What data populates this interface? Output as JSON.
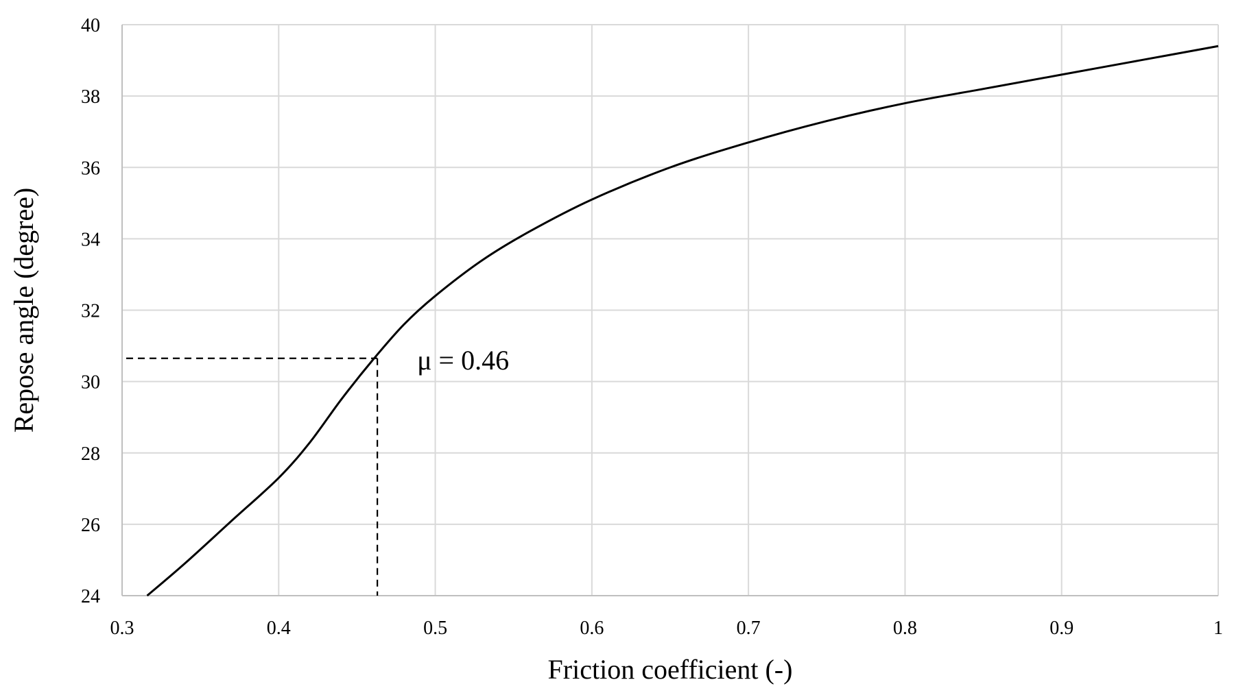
{
  "chart_data": {
    "type": "line",
    "xlabel": "Friction coefficient (-)",
    "ylabel": "Repose angle (degree)",
    "xlim": [
      0.3,
      1.0
    ],
    "ylim": [
      24,
      40
    ],
    "x_ticks": [
      0.3,
      0.4,
      0.5,
      0.6,
      0.7,
      0.8,
      0.9,
      1.0
    ],
    "x_tick_labels": [
      "0.3",
      "0.4",
      "0.5",
      "0.6",
      "0.7",
      "0.8",
      "0.9",
      "1"
    ],
    "y_ticks": [
      24,
      26,
      28,
      30,
      32,
      34,
      36,
      38,
      40
    ],
    "y_tick_labels": [
      "24",
      "26",
      "28",
      "30",
      "32",
      "34",
      "36",
      "38",
      "40"
    ],
    "grid": true,
    "legend": "none",
    "series": [
      {
        "color": "#000000",
        "x": [
          0.316,
          0.34,
          0.37,
          0.4,
          0.42,
          0.44,
          0.46,
          0.48,
          0.5,
          0.53,
          0.56,
          0.6,
          0.65,
          0.7,
          0.75,
          0.8,
          0.85,
          0.9,
          0.95,
          1.0
        ],
        "y": [
          24.0,
          24.9,
          26.1,
          27.3,
          28.3,
          29.5,
          30.6,
          31.6,
          32.4,
          33.4,
          34.2,
          35.1,
          36.0,
          36.7,
          37.3,
          37.8,
          38.2,
          38.6,
          39.0,
          39.4
        ]
      }
    ],
    "annotations": [
      {
        "text": "μ = 0.46",
        "x": 0.463,
        "y": 30.65
      }
    ]
  }
}
